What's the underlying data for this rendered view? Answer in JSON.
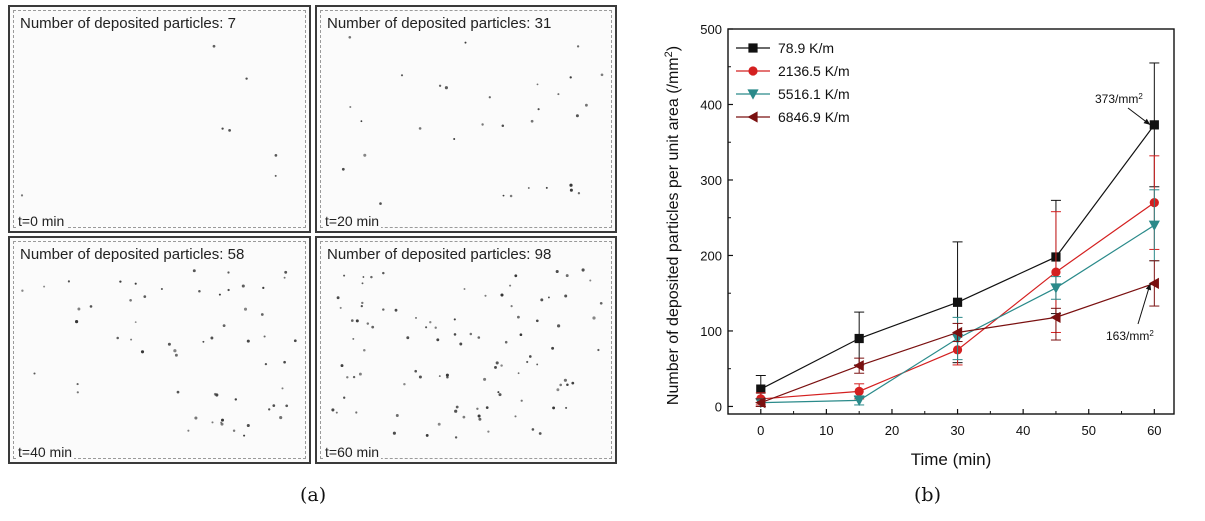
{
  "panel_a": {
    "caption": "(a)",
    "images": [
      {
        "count_text": "Number of deposited particles: 7",
        "time_text": "t=0 min",
        "particles": 7
      },
      {
        "count_text": "Number of deposited particles: 31",
        "time_text": "t=20 min",
        "particles": 31
      },
      {
        "count_text": "Number of deposited particles: 58",
        "time_text": "t=40 min",
        "particles": 58
      },
      {
        "count_text": "Number of deposited particles: 98",
        "time_text": "t=60 min",
        "particles": 98
      }
    ]
  },
  "panel_b": {
    "caption": "(b)"
  },
  "chart_data": {
    "type": "line",
    "xlabel": "Time (min)",
    "ylabel": "Number of deposited particles per unit area (/mm",
    "ylabel_sup": "2",
    "ylabel_end": ")",
    "xlim": [
      -5,
      63
    ],
    "ylim": [
      -10,
      500
    ],
    "xticks": [
      0,
      10,
      20,
      30,
      40,
      50,
      60
    ],
    "yticks": [
      0,
      100,
      200,
      300,
      400,
      500
    ],
    "legend_position": "top-left",
    "x": [
      0,
      15,
      30,
      45,
      60
    ],
    "series": [
      {
        "name": "78.9 K/m",
        "color": "#111111",
        "marker": "square",
        "values": [
          23,
          90,
          138,
          198,
          373
        ],
        "err_up": [
          18,
          35,
          80,
          75,
          82
        ],
        "err_down": [
          18,
          35,
          80,
          75,
          82
        ]
      },
      {
        "name": "2136.5 K/m",
        "color": "#d42020",
        "marker": "circle",
        "values": [
          10,
          20,
          75,
          178,
          270
        ],
        "err_up": [
          8,
          10,
          20,
          80,
          62
        ],
        "err_down": [
          8,
          10,
          20,
          80,
          62
        ]
      },
      {
        "name": "5516.1 K/m",
        "color": "#2a8a8a",
        "marker": "triangle-down",
        "values": [
          5,
          8,
          90,
          157,
          240
        ],
        "err_up": [
          5,
          6,
          28,
          15,
          47
        ],
        "err_down": [
          5,
          6,
          28,
          15,
          47
        ]
      },
      {
        "name": "6846.9 K/m",
        "color": "#7a1010",
        "marker": "triangle-left",
        "values": [
          5,
          54,
          98,
          118,
          163
        ],
        "err_up": [
          5,
          10,
          12,
          12,
          30
        ],
        "err_down": [
          5,
          10,
          12,
          30,
          30
        ]
      }
    ],
    "annotations": [
      {
        "text": "373/mm",
        "sup": "2",
        "target_x": 60,
        "target_y": 373
      },
      {
        "text": "163/mm",
        "sup": "2",
        "target_x": 60,
        "target_y": 163
      }
    ]
  }
}
